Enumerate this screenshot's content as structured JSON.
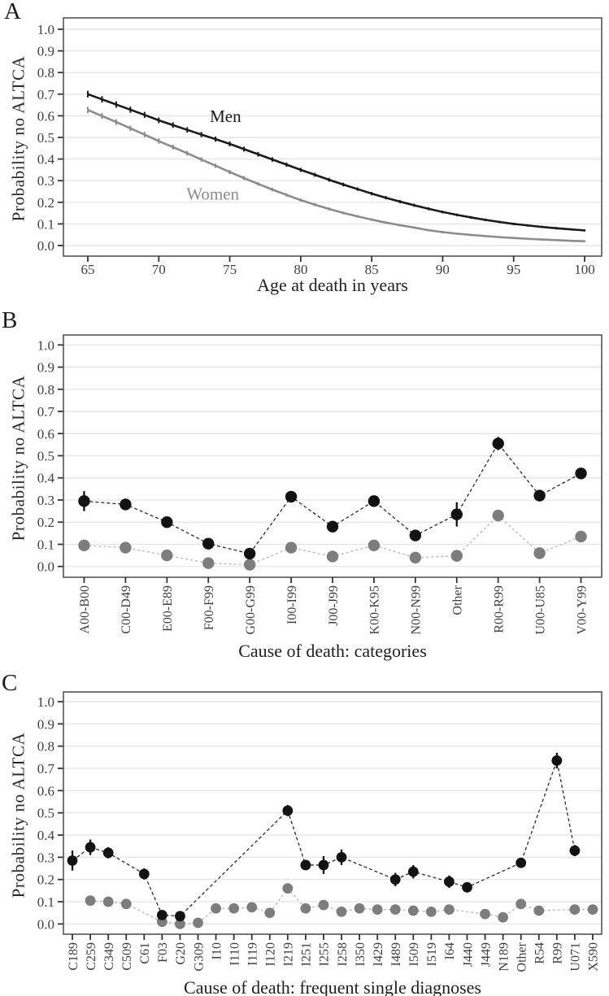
{
  "figure_title": "",
  "theme": {
    "background": "#ffffff",
    "grid_color": "#e7e7e7",
    "border_color": "#555555",
    "tick_color": "#333333",
    "axis_text_color": "#3f3f3f",
    "men_color": "#121212",
    "women_dot_color": "#7d7d7d",
    "women_line_color": "#8c8c8c",
    "women_dash_color": "#b5b5b5"
  },
  "chart_data": [
    {
      "panel": "A",
      "type": "line",
      "xlabel": "Age at death in years",
      "ylabel": "Probability no ALTCA",
      "xticks": [
        65,
        70,
        75,
        80,
        85,
        90,
        95,
        100
      ],
      "yticks": [
        0.0,
        0.1,
        0.2,
        0.3,
        0.4,
        0.5,
        0.6,
        0.7,
        0.8,
        0.9,
        1.0
      ],
      "ylim": [
        0.0,
        1.0
      ],
      "grid": "horizontal-major",
      "legend_position": "inline-annotations",
      "x": [
        65,
        66,
        67,
        68,
        69,
        70,
        71,
        72,
        73,
        74,
        75,
        76,
        77,
        78,
        79,
        80,
        81,
        82,
        83,
        84,
        85,
        86,
        87,
        88,
        89,
        90,
        91,
        92,
        93,
        94,
        95,
        96,
        97,
        98,
        99,
        100
      ],
      "series": [
        {
          "name": "Men",
          "color": "#1a1a1a",
          "values": [
            0.7,
            0.676,
            0.652,
            0.628,
            0.604,
            0.579,
            0.557,
            0.535,
            0.513,
            0.492,
            0.47,
            0.446,
            0.422,
            0.398,
            0.374,
            0.35,
            0.327,
            0.304,
            0.282,
            0.261,
            0.24,
            0.221,
            0.203,
            0.186,
            0.17,
            0.155,
            0.142,
            0.13,
            0.119,
            0.109,
            0.1,
            0.093,
            0.086,
            0.08,
            0.075,
            0.07
          ]
        },
        {
          "name": "Women",
          "color": "#8c8c8c",
          "values": [
            0.627,
            0.599,
            0.571,
            0.542,
            0.513,
            0.483,
            0.455,
            0.427,
            0.398,
            0.369,
            0.34,
            0.312,
            0.285,
            0.259,
            0.234,
            0.21,
            0.189,
            0.169,
            0.151,
            0.135,
            0.12,
            0.106,
            0.094,
            0.083,
            0.071,
            0.062,
            0.055,
            0.049,
            0.044,
            0.039,
            0.035,
            0.031,
            0.028,
            0.025,
            0.022,
            0.02
          ]
        }
      ],
      "annotations": [
        {
          "text": "Men",
          "x": 74.7,
          "y": 0.571,
          "color": "#1a1a1a"
        },
        {
          "text": "Women",
          "x": 73.8,
          "y": 0.213,
          "color": "#8c8c8c"
        }
      ]
    },
    {
      "panel": "B",
      "type": "scatter-line",
      "xlabel": "Cause of death: categories",
      "ylabel": "Probability no ALTCA",
      "yticks": [
        0.0,
        0.1,
        0.2,
        0.3,
        0.4,
        0.5,
        0.6,
        0.7,
        0.8,
        0.9,
        1.0
      ],
      "ylim": [
        0.0,
        1.0
      ],
      "grid": "horizontal-major",
      "categories": [
        "A00-B00",
        "C00-D49",
        "E00-E89",
        "F00-F99",
        "G00-G99",
        "I00-I99",
        "J00-J99",
        "K00-K95",
        "N00-N99",
        "Other",
        "R00-R99",
        "U00-U85",
        "V00-Y99"
      ],
      "series": [
        {
          "name": "Men",
          "color": "#121212",
          "values": [
            0.295,
            0.28,
            0.2,
            0.103,
            0.058,
            0.315,
            0.18,
            0.295,
            0.14,
            0.235,
            0.555,
            0.32,
            0.42
          ],
          "errors": [
            0.045,
            0.02,
            0.018,
            0.018,
            0.018,
            0.015,
            0.02,
            0.025,
            0.02,
            0.055,
            0.03,
            0.02,
            0.018
          ]
        },
        {
          "name": "Women",
          "color": "#7d7d7d",
          "values": [
            0.095,
            0.085,
            0.05,
            0.015,
            0.008,
            0.085,
            0.045,
            0.095,
            0.04,
            0.048,
            0.23,
            0.06,
            0.135
          ],
          "errors": [
            0.012,
            0.012,
            0.01,
            0.008,
            0.008,
            0.012,
            0.01,
            0.012,
            0.01,
            0.012,
            0.02,
            0.012,
            0.015
          ]
        }
      ]
    },
    {
      "panel": "C",
      "type": "scatter-line",
      "xlabel": "Cause of death: frequent single diagnoses",
      "ylabel": "Probability no ALTCA",
      "yticks": [
        0.0,
        0.1,
        0.2,
        0.3,
        0.4,
        0.5,
        0.6,
        0.7,
        0.8,
        0.9,
        1.0
      ],
      "ylim": [
        0.0,
        1.0
      ],
      "grid": "horizontal-major",
      "categories": [
        "C189",
        "C259",
        "C349",
        "C509",
        "C61",
        "F03",
        "G20",
        "G309",
        "I10",
        "I110",
        "I119",
        "I120",
        "I219",
        "I251",
        "I255",
        "I258",
        "I350",
        "I429",
        "I489",
        "I509",
        "I519",
        "I64",
        "J440",
        "J449",
        "N189",
        "Other",
        "R54",
        "R99",
        "U071",
        "X590"
      ],
      "series": [
        {
          "name": "Men",
          "color": "#121212",
          "values": [
            0.285,
            0.345,
            0.32,
            null,
            0.225,
            0.04,
            0.035,
            null,
            null,
            null,
            null,
            null,
            0.51,
            0.265,
            0.265,
            0.3,
            null,
            null,
            0.2,
            0.235,
            null,
            0.19,
            0.165,
            null,
            null,
            0.275,
            null,
            0.735,
            0.33,
            null
          ],
          "errors": [
            0.045,
            0.035,
            0.025,
            null,
            0.025,
            0.022,
            0.022,
            null,
            null,
            null,
            null,
            null,
            0.025,
            0.02,
            0.04,
            0.035,
            null,
            null,
            0.03,
            0.03,
            null,
            0.028,
            0.022,
            null,
            null,
            0.015,
            null,
            0.035,
            0.025,
            null
          ]
        },
        {
          "name": "Women",
          "color": "#7d7d7d",
          "values": [
            null,
            0.105,
            0.1,
            0.09,
            null,
            0.01,
            0.0,
            0.005,
            0.07,
            0.07,
            0.075,
            0.05,
            0.16,
            0.07,
            0.085,
            0.055,
            0.07,
            0.065,
            0.065,
            0.06,
            0.055,
            0.065,
            null,
            0.045,
            0.03,
            0.09,
            0.06,
            null,
            0.065,
            0.065
          ],
          "errors": [
            null,
            0.012,
            0.012,
            0.012,
            null,
            0.008,
            0.008,
            0.008,
            0.01,
            0.01,
            0.01,
            0.01,
            0.015,
            0.01,
            0.01,
            0.01,
            0.01,
            0.01,
            0.01,
            0.01,
            0.01,
            0.01,
            null,
            0.01,
            0.01,
            0.012,
            0.01,
            null,
            0.01,
            0.01
          ]
        }
      ]
    }
  ]
}
